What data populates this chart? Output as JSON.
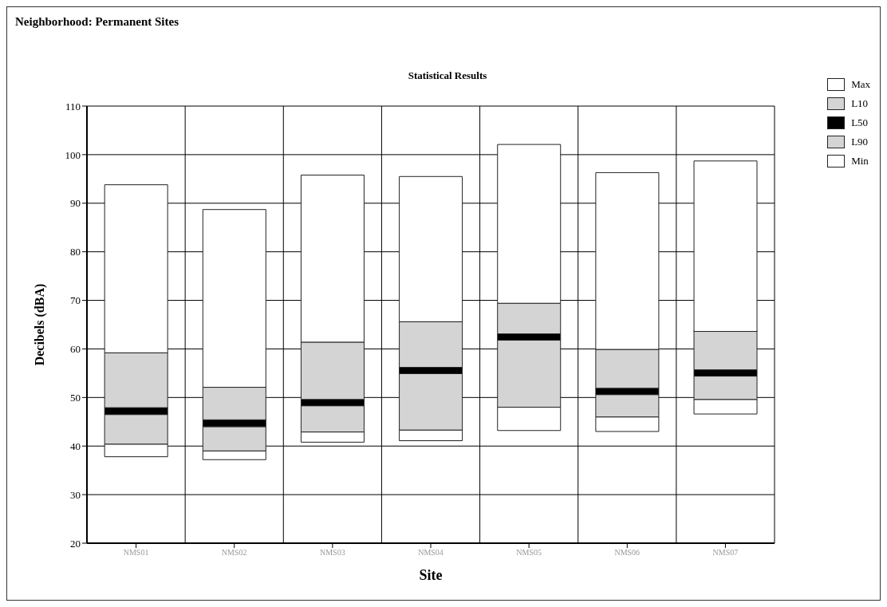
{
  "chart_data": {
    "type": "bar",
    "title": "Neighborhood: Permanent Sites",
    "subtitle": "Statistical Results",
    "xlabel": "Site",
    "ylabel": "Decibels (dBA)",
    "categories": [
      "NMS01",
      "NMS02",
      "NMS03",
      "NMS04",
      "NMS05",
      "NMS06",
      "NMS07"
    ],
    "series": [
      {
        "name": "Min",
        "color": "#ffffff",
        "base": [
          37.8,
          37.2,
          40.8,
          41.1,
          43.2,
          43.0,
          46.6
        ],
        "values": [
          2.6,
          1.8,
          2.1,
          2.2,
          4.8,
          3.0,
          3.0
        ]
      },
      {
        "name": "L90",
        "color": "#d4d4d4",
        "base": [
          40.4,
          39.0,
          42.9,
          43.3,
          48.0,
          46.0,
          49.6
        ],
        "values": [
          6.1,
          5.0,
          5.4,
          11.6,
          13.8,
          4.6,
          4.8
        ]
      },
      {
        "name": "L50",
        "color": "#000000",
        "base": [
          46.5,
          44.0,
          48.3,
          54.9,
          61.8,
          50.6,
          54.4
        ],
        "values": [
          1.4,
          1.4,
          1.3,
          1.3,
          1.3,
          1.3,
          1.3
        ]
      },
      {
        "name": "L10",
        "color": "#d4d4d4",
        "base": [
          47.9,
          45.4,
          49.6,
          56.2,
          63.1,
          51.9,
          55.7
        ],
        "values": [
          11.3,
          6.7,
          11.8,
          9.4,
          6.3,
          8.0,
          8.1
        ]
      },
      {
        "name": "Max",
        "color": "#ffffff",
        "base": [
          59.2,
          52.1,
          61.4,
          65.6,
          69.4,
          59.9,
          63.6
        ],
        "values": [
          34.6,
          36.6,
          34.4,
          29.9,
          32.7,
          36.4,
          35.1
        ]
      }
    ],
    "ylim": [
      20,
      110
    ],
    "yticks": [
      20,
      30,
      40,
      50,
      60,
      70,
      80,
      90,
      100,
      110
    ],
    "grid": true,
    "legend": "right"
  }
}
